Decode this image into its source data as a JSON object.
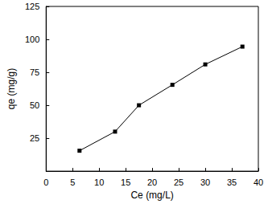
{
  "chart_data": {
    "type": "line",
    "x_label": "Ce (mg/L)",
    "y_label": "qe (mg/g)",
    "x": [
      6.3,
      13.0,
      17.5,
      23.8,
      30.0,
      37.0
    ],
    "values": [
      15.5,
      30.0,
      50.0,
      65.5,
      81.0,
      94.5
    ],
    "color": "#000000",
    "marker": "square",
    "xlim": [
      0,
      40
    ],
    "xticks": [
      0,
      5,
      10,
      15,
      20,
      25,
      30,
      35,
      40
    ],
    "ylim": [
      0,
      125
    ],
    "yticks": [
      25,
      50,
      75,
      100,
      125
    ],
    "grid": false
  }
}
